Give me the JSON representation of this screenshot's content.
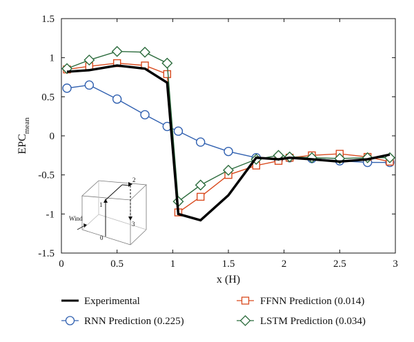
{
  "chart_data": {
    "type": "line",
    "xlabel": "x (H)",
    "ylabel_main": "EPC",
    "ylabel_sub": "mean",
    "xlim": [
      0,
      3
    ],
    "ylim": [
      -1.5,
      1.5
    ],
    "xticks": [
      0,
      0.5,
      1,
      1.5,
      2,
      2.5,
      3
    ],
    "xtick_labels": [
      "0",
      "0.5",
      "1",
      "1.5",
      "2",
      "2.5",
      "3"
    ],
    "yticks": [
      1.5,
      1,
      0.5,
      0,
      -0.5,
      -1,
      -1.5
    ],
    "ytick_labels": [
      "1.5",
      "1",
      "0.5",
      "0",
      "-0.5",
      "-1",
      "-1.5"
    ],
    "grid": false,
    "legend_position": "bottom",
    "series": [
      {
        "name": "Experimental",
        "color": "#000000",
        "marker": "none",
        "x": [
          0.05,
          0.25,
          0.5,
          0.75,
          0.95,
          1.05,
          1.25,
          1.5,
          1.75,
          1.95,
          2.05,
          2.25,
          2.5,
          2.75,
          2.95
        ],
        "y": [
          0.82,
          0.84,
          0.9,
          0.86,
          0.68,
          -1.0,
          -1.08,
          -0.76,
          -0.28,
          -0.3,
          -0.28,
          -0.3,
          -0.33,
          -0.3,
          -0.24
        ]
      },
      {
        "name": "RNN Prediction (0.225)",
        "color": "#3060b0",
        "marker": "circle",
        "x": [
          0.05,
          0.25,
          0.5,
          0.75,
          0.95,
          1.05,
          1.25,
          1.5,
          1.75,
          1.95,
          2.05,
          2.25,
          2.5,
          2.75,
          2.95
        ],
        "y": [
          0.61,
          0.65,
          0.47,
          0.27,
          0.12,
          0.06,
          -0.08,
          -0.2,
          -0.28,
          -0.3,
          -0.28,
          -0.29,
          -0.32,
          -0.34,
          -0.34
        ]
      },
      {
        "name": "FFNN Prediction (0.014)",
        "color": "#d94a1e",
        "marker": "square",
        "x": [
          0.05,
          0.25,
          0.5,
          0.75,
          0.95,
          1.05,
          1.25,
          1.5,
          1.75,
          1.95,
          2.05,
          2.25,
          2.5,
          2.75,
          2.95
        ],
        "y": [
          0.85,
          0.89,
          0.93,
          0.9,
          0.79,
          -0.98,
          -0.78,
          -0.5,
          -0.38,
          -0.32,
          -0.28,
          -0.25,
          -0.23,
          -0.27,
          -0.33
        ]
      },
      {
        "name": "LSTM Prediction (0.034)",
        "color": "#2b6b3c",
        "marker": "diamond",
        "x": [
          0.05,
          0.25,
          0.5,
          0.75,
          0.95,
          1.05,
          1.25,
          1.5,
          1.75,
          1.95,
          2.05,
          2.25,
          2.5,
          2.75,
          2.95
        ],
        "y": [
          0.86,
          0.97,
          1.08,
          1.07,
          0.93,
          -0.84,
          -0.63,
          -0.44,
          -0.3,
          -0.25,
          -0.27,
          -0.28,
          -0.29,
          -0.28,
          -0.28
        ]
      }
    ],
    "inset": {
      "labels": [
        "Wind",
        "0",
        "1",
        "2",
        "3"
      ]
    }
  }
}
